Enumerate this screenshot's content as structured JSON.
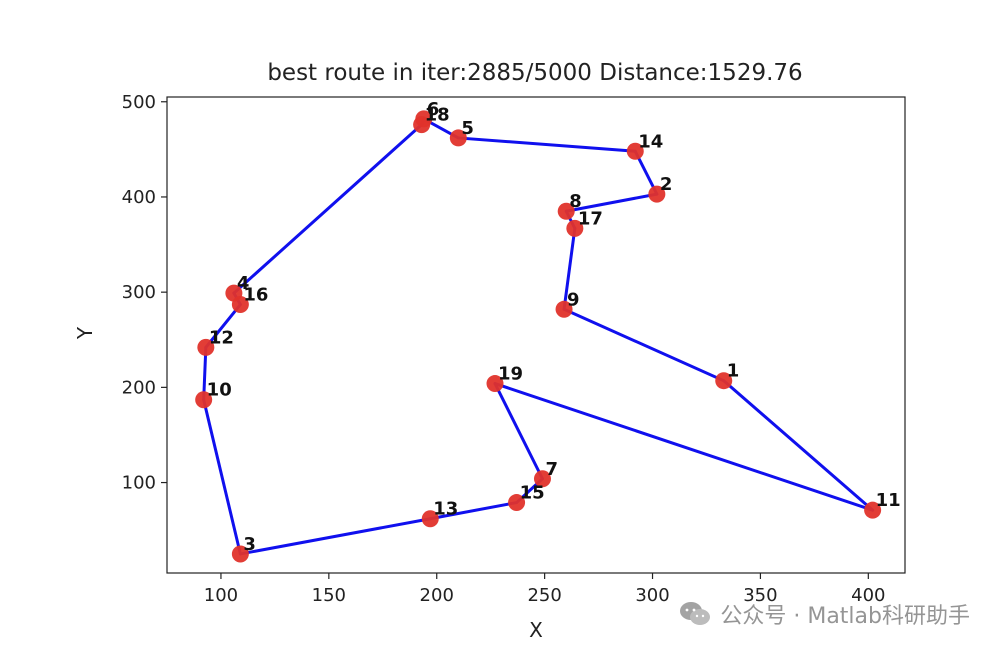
{
  "chart_data": {
    "type": "scatter",
    "title": "best route in iter:2885/5000 Distance:1529.76",
    "xlabel": "X",
    "ylabel": "Y",
    "xlim": [
      75,
      417
    ],
    "ylim": [
      5,
      505
    ],
    "xticks": [
      100,
      150,
      200,
      250,
      300,
      350,
      400
    ],
    "yticks": [
      100,
      200,
      300,
      400,
      500
    ],
    "grid": false,
    "point_color": "#e0332b",
    "route_color": "#1010ee",
    "points": [
      {
        "label": "1",
        "x": 333,
        "y": 207
      },
      {
        "label": "2",
        "x": 302,
        "y": 403
      },
      {
        "label": "3",
        "x": 109,
        "y": 25
      },
      {
        "label": "4",
        "x": 106,
        "y": 299
      },
      {
        "label": "5",
        "x": 210,
        "y": 462
      },
      {
        "label": "6",
        "x": 194,
        "y": 482
      },
      {
        "label": "7",
        "x": 249,
        "y": 104
      },
      {
        "label": "8",
        "x": 260,
        "y": 385
      },
      {
        "label": "9",
        "x": 259,
        "y": 282
      },
      {
        "label": "10",
        "x": 92,
        "y": 187
      },
      {
        "label": "11",
        "x": 402,
        "y": 71
      },
      {
        "label": "12",
        "x": 93,
        "y": 242
      },
      {
        "label": "13",
        "x": 197,
        "y": 62
      },
      {
        "label": "14",
        "x": 292,
        "y": 448
      },
      {
        "label": "15",
        "x": 237,
        "y": 79
      },
      {
        "label": "16",
        "x": 109,
        "y": 287
      },
      {
        "label": "17",
        "x": 264,
        "y": 367
      },
      {
        "label": "18",
        "x": 193,
        "y": 476
      },
      {
        "label": "19",
        "x": 227,
        "y": 204
      }
    ],
    "route": [
      "6",
      "5",
      "14",
      "2",
      "8",
      "17",
      "9",
      "1",
      "11",
      "19",
      "7",
      "15",
      "13",
      "3",
      "10",
      "12",
      "16",
      "4",
      "18",
      "6"
    ]
  },
  "watermark": {
    "icon": "wechat-icon",
    "text": "公众号 · Matlab科研助手"
  }
}
